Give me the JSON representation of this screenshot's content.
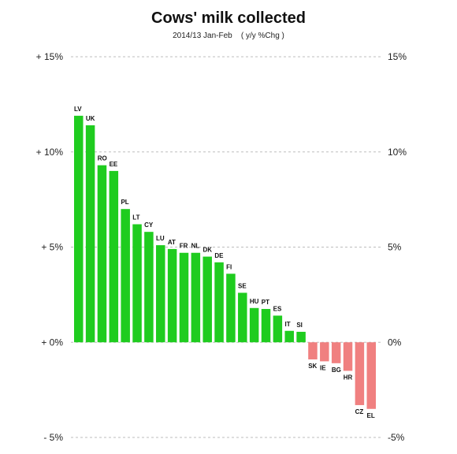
{
  "chart_data": {
    "type": "bar",
    "title": "Cows' milk collected",
    "subtitle": "2014/13 Jan-Feb    ( y/y %Chg )",
    "xlabel": "",
    "ylabel": "",
    "ylim": [
      -5,
      15
    ],
    "grid": true,
    "left_tick_labels": [
      "- 5%",
      "+ 0%",
      "+ 5%",
      "+ 10%",
      "+ 15%"
    ],
    "right_tick_labels": [
      "-5%",
      "0%",
      "5%",
      "10%",
      "15%"
    ],
    "tick_values": [
      -5,
      0,
      5,
      10,
      15
    ],
    "categories": [
      "LV",
      "UK",
      "RO",
      "EE",
      "PL",
      "LT",
      "CY",
      "LU",
      "AT",
      "FR",
      "NL",
      "DK",
      "DE",
      "FI",
      "SE",
      "HU",
      "PT",
      "ES",
      "IT",
      "SI",
      "SK",
      "IE",
      "BG",
      "HR",
      "CZ",
      "EL"
    ],
    "values": [
      11.9,
      11.4,
      9.3,
      9.0,
      7.0,
      6.2,
      5.8,
      5.1,
      4.9,
      4.7,
      4.7,
      4.5,
      4.2,
      3.6,
      2.6,
      1.8,
      1.75,
      1.4,
      0.6,
      0.55,
      -0.9,
      -1.0,
      -1.1,
      -1.5,
      -3.3,
      -3.5
    ],
    "colors": {
      "positive": "#1fcc1f",
      "negative": "#f08080"
    }
  }
}
